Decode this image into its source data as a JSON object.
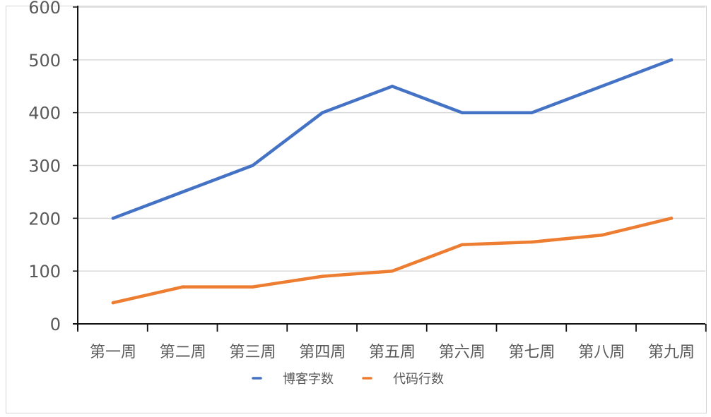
{
  "chart_data": {
    "type": "line",
    "title": "",
    "xlabel": "",
    "ylabel": "",
    "ylim": [
      0,
      600
    ],
    "yticks": [
      0,
      100,
      200,
      300,
      400,
      500,
      600
    ],
    "grid": "horizontal",
    "legend_position": "bottom",
    "categories": [
      "第一周",
      "第二周",
      "第三周",
      "第四周",
      "第五周",
      "第六周",
      "第七周",
      "第八周",
      "第九周"
    ],
    "series": [
      {
        "name": "博客字数",
        "color": "#4472c4",
        "values": [
          200,
          250,
          300,
          400,
          450,
          400,
          400,
          450,
          500
        ]
      },
      {
        "name": "代码行数",
        "color": "#ed7d31",
        "values": [
          40,
          70,
          70,
          90,
          100,
          150,
          155,
          168,
          200
        ]
      }
    ]
  }
}
